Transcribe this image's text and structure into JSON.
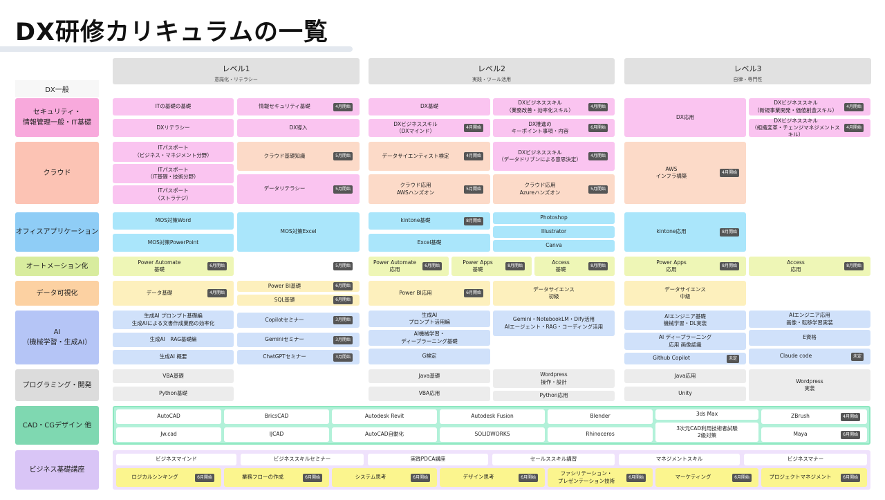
{
  "title": "DX研修カリキュラムの一覧",
  "levels": [
    {
      "name": "レベル1",
      "sub": "意識化・リテラシー"
    },
    {
      "name": "レベル2",
      "sub": "実践・ツール活用"
    },
    {
      "name": "レベル3",
      "sub": "自律・専門性"
    }
  ],
  "dx_general": "DX一般",
  "categories": [
    {
      "label": "セキュリティ・\n情報管理一般・IT基礎",
      "color": "#f8a9dc"
    },
    {
      "label": "クラウド",
      "color": "#fcc3b4"
    },
    {
      "label": "オフィスアプリケーション",
      "color": "#8fcdf6"
    },
    {
      "label": "オートメーション化",
      "color": "#d8ec9e"
    },
    {
      "label": "データ可視化",
      "color": "#fcd1a2"
    },
    {
      "label": "AI\n（機械学習・生成AI）",
      "color": "#b5c5f6"
    },
    {
      "label": "プログラミング・開発",
      "color": "#dcdcdc"
    },
    {
      "label": "CAD・CGデザイン 他",
      "color": "#7fd8b1"
    },
    {
      "label": "ビジネス基礎講座",
      "color": "#d9c5f6"
    }
  ],
  "colors": {
    "pink": "#fac4f0",
    "peach": "#fcdac8",
    "blue": "#aae6fb",
    "auto": "#eef6b6",
    "viz": "#fdf0bd",
    "ai": "#d0e1fa",
    "prog": "#ececec",
    "white": "#ffffff",
    "yellow": "#fbf58e",
    "none": "transparent",
    "badge": "#555555",
    "cad_panel": "#b2f1d9",
    "cad_border": "#8ee8c0",
    "biz_panel": "#efe2fc"
  },
  "courses": [
    {
      "text": "ITの基礎の基礎"
    },
    {
      "text": "DXリテラシー"
    },
    {
      "text": "情報セキュリティ基礎",
      "badge": "4月開始"
    },
    {
      "text": "DX導入"
    },
    {
      "text": "DX基礎"
    },
    {
      "text": "DXビジネススキル\n（DXマインド）",
      "badge": "4月開始"
    },
    {
      "text": "DXビジネススキル\n（業務改善・効率化スキル）",
      "badge": "4月開始"
    },
    {
      "text": "DX推進の\nキーポイント事項・内容",
      "badge": "6月開始"
    },
    {
      "text": "DX応用"
    },
    {
      "text": "DXビジネススキル\n（新規事業開発・価値創造スキル）",
      "badge": "4月開始"
    },
    {
      "text": "DXビジネススキル\n（組織変革・チェンジマネジメントスキル）",
      "badge": "4月開始"
    },
    {
      "text": "ITパスポート\n（ビジネス・マネジメント分野）"
    },
    {
      "text": "ITパスポート\n（IT基礎・技術分野）"
    },
    {
      "text": "ITパスポート\n（ストラテジ）"
    },
    {
      "text": "クラウド基礎知識",
      "badge": "5月開始"
    },
    {
      "text": "データリテラシー",
      "badge": "5月開始"
    },
    {
      "text": "データサイエンティスト検定",
      "badge": "4月開始"
    },
    {
      "text": "クラウド応用\nAWSハンズオン",
      "badge": "5月開始"
    },
    {
      "text": "DXビジネススキル\n（データドリブンによる意思決定）",
      "badge": "4月開始"
    },
    {
      "text": "クラウド応用\nAzureハンズオン",
      "badge": "5月開始"
    },
    {
      "text": "AWS\nインフラ構築",
      "badge": "4月開始"
    },
    {
      "text": "MOS対策Word"
    },
    {
      "text": "MOS対策PowerPoint"
    },
    {
      "text": "MOS対策Excel"
    },
    {
      "text": "kintone基礎",
      "badge": "8月開始"
    },
    {
      "text": "Excel基礎"
    },
    {
      "text": "Photoshop"
    },
    {
      "text": "Illustrator"
    },
    {
      "text": "Canva"
    },
    {
      "text": "kintone応用",
      "badge": "8月開始"
    },
    {
      "text": "Power Automate\n基礎",
      "badge": "6月開始"
    },
    {
      "text": "",
      "badge": "5月開始"
    },
    {
      "text": "Power Automate\n応用",
      "badge": "6月開始"
    },
    {
      "text": "Power Apps\n基礎",
      "badge": "8月開始"
    },
    {
      "text": "Access\n基礎",
      "badge": "8月開始"
    },
    {
      "text": "Power Apps\n応用",
      "badge": "8月開始"
    },
    {
      "text": "Access\n応用",
      "badge": "8月開始"
    },
    {
      "text": "データ基礎",
      "badge": "4月開始"
    },
    {
      "text": "Power BI基礎",
      "badge": "6月開始"
    },
    {
      "text": "SQL基礎",
      "badge": "6月開始"
    },
    {
      "text": "Power BI応用",
      "badge": "6月開始"
    },
    {
      "text": "データサイエンス\n初級"
    },
    {
      "text": "データサイエンス\n中級"
    },
    {
      "text": "生成AI プロンプト基礎編\n生成AIによる文書作成業務の効率化"
    },
    {
      "text": "生成AI　RAG基礎編"
    },
    {
      "text": "生成AI 概要"
    },
    {
      "text": "Copilotセミナー",
      "badge": "3月開始"
    },
    {
      "text": "Geminiセミナー",
      "badge": "3月開始"
    },
    {
      "text": "ChatGPTセミナー",
      "badge": "3月開始"
    },
    {
      "text": "生成AI\nプロンプト活用編"
    },
    {
      "text": "AI機械学習・\nディープラーニング基礎"
    },
    {
      "text": "G検定"
    },
    {
      "text": "Gemini・NotebookLM・Dify活用\nAIエージェント・RAG・コーディング活用"
    },
    {
      "text": "AIエンジニア基礎\n機械学習・DL実装"
    },
    {
      "text": "AI ディープラーニング\n応用 画像認識"
    },
    {
      "text": "Github Copilot",
      "badge": "未定"
    },
    {
      "text": "AIエンジニア応用\n画像・転移学習実装"
    },
    {
      "text": "E資格"
    },
    {
      "text": "Claude code",
      "badge": "未定"
    },
    {
      "text": "VBA基礎"
    },
    {
      "text": "Python基礎"
    },
    {
      "text": "Java基礎"
    },
    {
      "text": "VBA応用"
    },
    {
      "text": "Wordpress\n操作・設計"
    },
    {
      "text": "Python応用"
    },
    {
      "text": "Java応用"
    },
    {
      "text": "Unity"
    },
    {
      "text": "Wordpress\n実装"
    },
    {
      "text": "AutoCAD"
    },
    {
      "text": "BricsCAD"
    },
    {
      "text": "Autodesk Revit"
    },
    {
      "text": "Autodesk Fusion"
    },
    {
      "text": "Blender"
    },
    {
      "text": "3ds Max"
    },
    {
      "text": "ZBrush",
      "badge": "4月開始"
    },
    {
      "text": "Jw.cad"
    },
    {
      "text": "IJCAD"
    },
    {
      "text": "AutoCAD自動化"
    },
    {
      "text": "SOLIDWORKS"
    },
    {
      "text": "Rhinoceros"
    },
    {
      "text": "3次元CAD利用技術者試験\n2級対策"
    },
    {
      "text": "Maya",
      "badge": "6月開始"
    },
    {
      "text": "ビジネスマインド"
    },
    {
      "text": "ビジネススキルセミナー"
    },
    {
      "text": "実践PDCA講座"
    },
    {
      "text": "セールススキル講習"
    },
    {
      "text": "マネジメントスキル"
    },
    {
      "text": "ビジネスマナー"
    },
    {
      "text": "ロジカルシンキング",
      "badge": "6月開始"
    },
    {
      "text": "業務フローの作成",
      "badge": "6月開始"
    },
    {
      "text": "システム思考",
      "badge": "6月開始"
    },
    {
      "text": "デザイン思考",
      "badge": "6月開始"
    },
    {
      "text": "ファシリテーション・\nプレゼンテーション技術",
      "badge": "6月開始"
    },
    {
      "text": "マーケティング",
      "badge": "6月開始"
    },
    {
      "text": "プロジェクトマネジメント",
      "badge": "6月開始"
    }
  ]
}
